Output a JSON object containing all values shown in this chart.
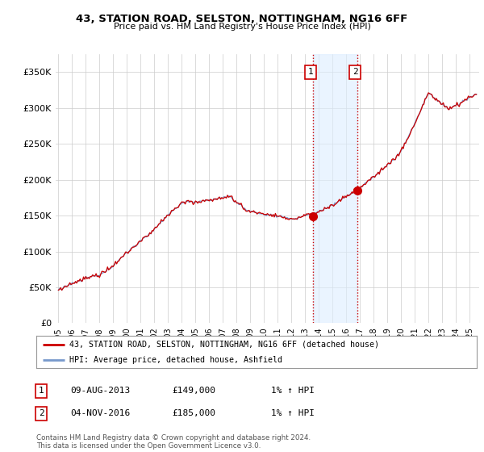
{
  "title": "43, STATION ROAD, SELSTON, NOTTINGHAM, NG16 6FF",
  "subtitle": "Price paid vs. HM Land Registry's House Price Index (HPI)",
  "ylabel_ticks": [
    "£0",
    "£50K",
    "£100K",
    "£150K",
    "£200K",
    "£250K",
    "£300K",
    "£350K"
  ],
  "ytick_values": [
    0,
    50000,
    100000,
    150000,
    200000,
    250000,
    300000,
    350000
  ],
  "ylim": [
    0,
    375000
  ],
  "xlim_start": 1994.8,
  "xlim_end": 2025.7,
  "hpi_color": "#7799cc",
  "price_color": "#cc0000",
  "bg_color": "#ffffff",
  "grid_color": "#cccccc",
  "sale1_x": 2013.6,
  "sale1_y": 149000,
  "sale2_x": 2016.84,
  "sale2_y": 185000,
  "shade_color": "#ddeeff",
  "shade_alpha": 0.6,
  "legend_line1": "43, STATION ROAD, SELSTON, NOTTINGHAM, NG16 6FF (detached house)",
  "legend_line2": "HPI: Average price, detached house, Ashfield",
  "footer": "Contains HM Land Registry data © Crown copyright and database right 2024.\nThis data is licensed under the Open Government Licence v3.0.",
  "table_rows": [
    {
      "num": "1",
      "date": "09-AUG-2013",
      "price": "£149,000",
      "hpi": "1% ↑ HPI"
    },
    {
      "num": "2",
      "date": "04-NOV-2016",
      "price": "£185,000",
      "hpi": "1% ↑ HPI"
    }
  ]
}
